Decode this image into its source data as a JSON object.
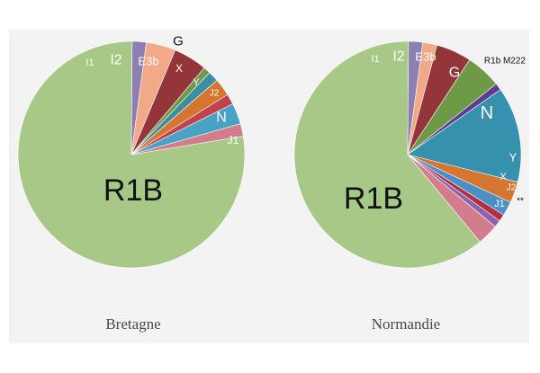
{
  "chart_data": [
    {
      "type": "pie",
      "caption": "Bretagne",
      "slices": [
        {
          "label": "R1B",
          "value": 77.7,
          "color": "#a8c888"
        },
        {
          "label": "I1",
          "value": 2.0,
          "color": "#8d7fb2"
        },
        {
          "label": "I2",
          "value": 4.2,
          "color": "#f1a987"
        },
        {
          "label": "E3b",
          "value": 4.8,
          "color": "#943639"
        },
        {
          "label": "G",
          "value": 1.0,
          "color": "#6e9a48"
        },
        {
          "label": "X",
          "value": 1.5,
          "color": "#3b8e9f"
        },
        {
          "label": "Y",
          "value": 2.5,
          "color": "#d47630"
        },
        {
          "label": "J2",
          "value": 1.5,
          "color": "#c0424a"
        },
        {
          "label": "N",
          "value": 3.0,
          "color": "#47a2c4"
        },
        {
          "label": "J1",
          "value": 1.8,
          "color": "#d37d8c"
        }
      ]
    },
    {
      "type": "pie",
      "caption": "Normandie",
      "slices": [
        {
          "label": "R1B",
          "value": 60.5,
          "color": "#a8c888"
        },
        {
          "label": "I1",
          "value": 2.0,
          "color": "#8d7fb2"
        },
        {
          "label": "I2",
          "value": 2.0,
          "color": "#f1a987"
        },
        {
          "label": "E3b",
          "value": 5.0,
          "color": "#943639"
        },
        {
          "label": "G",
          "value": 5.0,
          "color": "#6e9a48"
        },
        {
          "label": "R1b M222",
          "value": 1.0,
          "color": "#5a3f8e"
        },
        {
          "label": "N",
          "value": 13.5,
          "color": "#3591ad"
        },
        {
          "label": "Y",
          "value": 3.0,
          "color": "#d47630"
        },
        {
          "label": "X",
          "value": 2.0,
          "color": "#4a8fc6"
        },
        {
          "label": "J2",
          "value": 1.0,
          "color": "#b0303f"
        },
        {
          "label": "**",
          "value": 1.0,
          "color": "#8d63b0"
        },
        {
          "label": "J1",
          "value": 3.0,
          "color": "#d37d8c"
        }
      ]
    }
  ]
}
